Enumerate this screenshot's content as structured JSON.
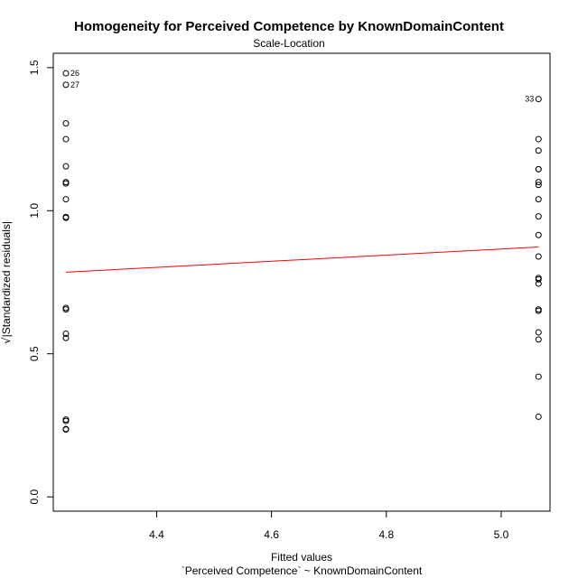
{
  "chart_data": {
    "type": "scatter",
    "title": "Homogeneity for Perceived Competence by KnownDomainContent",
    "subtitle": "Scale-Location",
    "xlabel": "Fitted values",
    "caption": "`Perceived Competence` ~ KnownDomainContent",
    "ylabel_prefix": "√",
    "ylabel": "|Standardized residuals|",
    "xlim": [
      4.22,
      5.085
    ],
    "ylim": [
      -0.05,
      1.55
    ],
    "xticks": [
      4.4,
      4.6,
      4.8,
      5.0
    ],
    "xtick_labels": [
      "4.4",
      "4.6",
      "4.8",
      "5.0"
    ],
    "yticks": [
      0.0,
      0.5,
      1.0,
      1.5
    ],
    "ytick_labels": [
      "0.0",
      "0.5",
      "1.0",
      "1.5"
    ],
    "grid": false,
    "series": [
      {
        "x": 4.242,
        "values": [
          1.48,
          1.44,
          1.305,
          1.25,
          1.155,
          1.1,
          1.095,
          1.04,
          0.975,
          0.978,
          0.66,
          0.655,
          0.57,
          0.555,
          0.27,
          0.265,
          0.237,
          0.235
        ]
      },
      {
        "x": 5.065,
        "values": [
          1.39,
          1.25,
          1.21,
          1.145,
          1.145,
          1.1,
          1.09,
          1.04,
          0.98,
          0.915,
          0.84,
          0.765,
          0.76,
          0.745,
          0.655,
          0.65,
          0.575,
          0.55,
          0.42,
          0.28
        ]
      }
    ],
    "smoother": {
      "x": [
        4.242,
        5.065
      ],
      "y": [
        0.785,
        0.873
      ],
      "color": "#ff0000"
    },
    "point_labels": [
      {
        "label": "26",
        "x": 4.242,
        "y": 1.48,
        "side": "right"
      },
      {
        "label": "27",
        "x": 4.242,
        "y": 1.44,
        "side": "right"
      },
      {
        "label": "33",
        "x": 5.065,
        "y": 1.39,
        "side": "left"
      }
    ]
  }
}
